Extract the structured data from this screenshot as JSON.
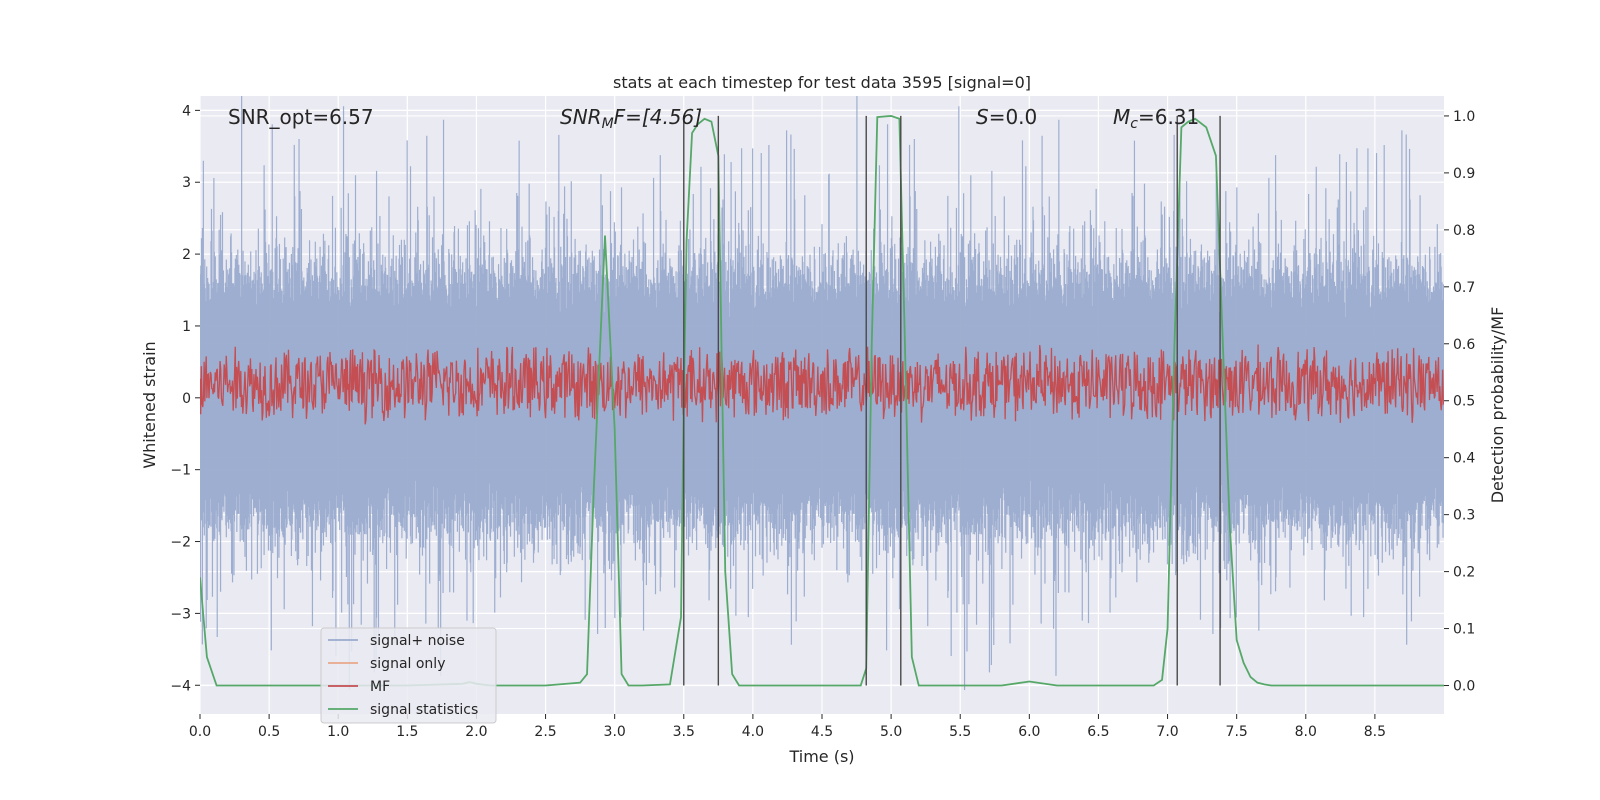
{
  "chart_data": {
    "type": "line",
    "title": "stats at each timestep for test data 3595 [signal=0]",
    "xlabel": "Time (s)",
    "ylabel_left": "Whitened strain",
    "ylabel_right": "Detection probability/MF",
    "xlim": [
      0.0,
      9.0
    ],
    "ylim_left": [
      -4.4,
      4.2
    ],
    "ylim_right": [
      -0.05,
      1.035
    ],
    "x_ticks": [
      "0.0",
      "0.5",
      "1.0",
      "1.5",
      "2.0",
      "2.5",
      "3.0",
      "3.5",
      "4.0",
      "4.5",
      "5.0",
      "5.5",
      "6.0",
      "6.5",
      "7.0",
      "7.5",
      "8.0",
      "8.5"
    ],
    "y_left_ticks": [
      "4",
      "3",
      "2",
      "1",
      "0",
      "−1",
      "−2",
      "−3",
      "−4"
    ],
    "y_right_ticks": [
      "1.0",
      "0.9",
      "0.8",
      "0.7",
      "0.6",
      "0.5",
      "0.4",
      "0.3",
      "0.2",
      "0.1",
      "0.0"
    ],
    "grid": true,
    "legend_position": "lower-left",
    "annotations": {
      "snr_opt": "SNR_opt=6.57",
      "snr_mf_base": "SNR",
      "snr_mf_sub": "M",
      "snr_mf_rest": "F=[4.56]",
      "s_base": "S",
      "s_rest": "=0.0",
      "mc_base": "M",
      "mc_sub": "c",
      "mc_rest": "=6.31"
    },
    "series": [
      {
        "name": "signal+ noise",
        "color": "#9aabce",
        "axis": "left",
        "noise_amplitude": 2.6
      },
      {
        "name": "signal only",
        "color": "#e8a98a",
        "axis": "left",
        "values": []
      },
      {
        "name": "MF",
        "color": "#c44e52",
        "axis": "right",
        "baseline": 0.53,
        "amplitude": 0.06
      },
      {
        "name": "signal statistics",
        "color": "#55a868",
        "axis": "right",
        "x": [
          0.0,
          0.05,
          0.12,
          0.2,
          0.5,
          1.0,
          1.5,
          1.9,
          1.95,
          2.0,
          2.1,
          2.5,
          2.75,
          2.8,
          2.85,
          2.93,
          3.0,
          3.05,
          3.1,
          3.15,
          3.2,
          3.4,
          3.48,
          3.5,
          3.52,
          3.56,
          3.6,
          3.65,
          3.7,
          3.75,
          3.8,
          3.85,
          3.9,
          4.0,
          4.5,
          4.78,
          4.82,
          4.86,
          4.9,
          5.0,
          5.06,
          5.1,
          5.15,
          5.2,
          5.25,
          5.5,
          5.8,
          6.0,
          6.2,
          6.5,
          6.9,
          6.96,
          7.0,
          7.05,
          7.1,
          7.15,
          7.2,
          7.28,
          7.35,
          7.4,
          7.45,
          7.5,
          7.55,
          7.6,
          7.65,
          7.7,
          7.75,
          7.8,
          8.0,
          8.5,
          9.0
        ],
        "values": [
          0.19,
          0.05,
          0.0,
          0.0,
          0.0,
          0.0,
          0.0,
          0.003,
          0.006,
          0.003,
          0.0,
          0.0,
          0.005,
          0.02,
          0.35,
          0.79,
          0.45,
          0.02,
          0.0,
          0.0,
          0.0,
          0.002,
          0.12,
          0.5,
          0.78,
          0.97,
          0.985,
          0.995,
          0.99,
          0.93,
          0.2,
          0.02,
          0.0,
          0.0,
          0.0,
          0.0,
          0.03,
          0.6,
          0.998,
          1.0,
          0.995,
          0.6,
          0.05,
          0.0,
          0.0,
          0.0,
          0.0,
          0.007,
          0.0,
          0.0,
          0.0,
          0.01,
          0.1,
          0.6,
          0.98,
          0.99,
          0.995,
          0.98,
          0.93,
          0.6,
          0.28,
          0.08,
          0.04,
          0.015,
          0.005,
          0.002,
          0.0,
          0.0,
          0.0,
          0.0,
          0.0
        ]
      }
    ],
    "vertical_lines_x": [
      3.5,
      3.75,
      4.82,
      5.07,
      7.07,
      7.38
    ]
  }
}
